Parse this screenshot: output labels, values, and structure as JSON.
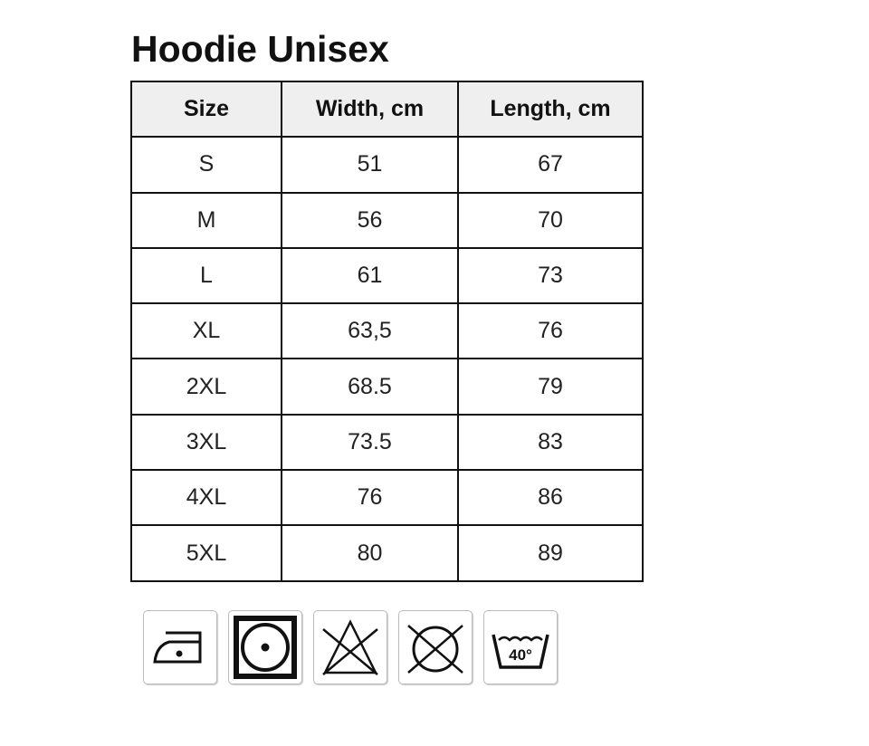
{
  "title": "Hoodie Unisex",
  "table": {
    "headers": [
      "Size",
      "Width, cm",
      "Length, cm"
    ],
    "rows": [
      [
        "S",
        "51",
        "67"
      ],
      [
        "M",
        "56",
        "70"
      ],
      [
        "L",
        "61",
        "73"
      ],
      [
        "XL",
        "63,5",
        "76"
      ],
      [
        "2XL",
        "68.5",
        "79"
      ],
      [
        "3XL",
        "73.5",
        "83"
      ],
      [
        "4XL",
        "76",
        "86"
      ],
      [
        "5XL",
        "80",
        "89"
      ]
    ]
  },
  "care_icons": [
    {
      "icon": "iron-low-heat-icon"
    },
    {
      "icon": "tumble-dry-low-icon"
    },
    {
      "icon": "do-not-bleach-icon"
    },
    {
      "icon": "do-not-dry-clean-icon"
    },
    {
      "icon": "wash-40-icon",
      "label": "40°"
    }
  ]
}
